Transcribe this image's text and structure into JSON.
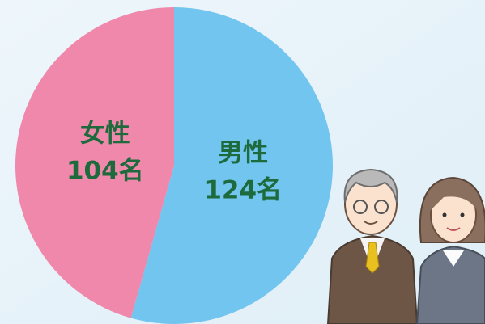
{
  "chart_data": {
    "type": "pie",
    "categories": [
      "男性",
      "女性"
    ],
    "values": [
      124,
      104
    ],
    "value_labels": [
      "124名",
      "104名"
    ],
    "colors": [
      "#72c5ee",
      "#ef88ab"
    ],
    "start": "top",
    "direction": "clockwise"
  }
}
